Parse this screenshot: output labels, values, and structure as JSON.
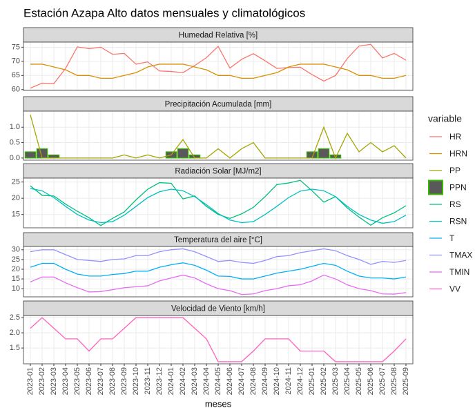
{
  "title": "Estación Azapa Alto datos mensuales y climatológicos",
  "x_label": "meses",
  "legend_title": "variable",
  "chart_data": [
    {
      "type": "line",
      "title": "Humedad Relativa [%]",
      "categories": [
        "2023-01",
        "2023-02",
        "2023-03",
        "2023-04",
        "2023-05",
        "2023-06",
        "2023-07",
        "2023-08",
        "2023-09",
        "2023-10",
        "2023-11",
        "2023-12",
        "2024-01",
        "2024-02",
        "2024-03",
        "2024-04",
        "2024-05",
        "2024-06",
        "2024-07",
        "2024-08",
        "2024-09",
        "2024-10",
        "2024-11",
        "2024-12",
        "2025-01",
        "2025-02",
        "2025-03",
        "2025-04",
        "2025-05",
        "2025-06",
        "2025-07",
        "2025-08",
        "2025-09"
      ],
      "ylim": [
        59.7,
        76.8
      ],
      "yticks": [
        60,
        65,
        70,
        75
      ],
      "grid": true,
      "series": [
        {
          "name": "HR",
          "color": "#F8766D",
          "values": [
            60.5,
            62.3,
            62.1,
            67.5,
            75.1,
            74.5,
            75,
            72.5,
            72.8,
            69,
            69.8,
            66.6,
            66.4,
            66,
            68.5,
            71.3,
            75.3,
            67.6,
            70.7,
            72.7,
            70.2,
            67.5,
            67.8,
            67.9,
            65.3,
            63,
            65,
            71,
            75.4,
            76,
            71.2,
            72.8,
            70.4
          ]
        },
        {
          "name": "HRN",
          "color": "#D89000",
          "values": [
            69,
            69,
            68,
            67,
            65,
            65,
            64,
            64,
            65,
            66,
            68,
            69,
            69,
            69,
            68,
            67,
            65,
            65,
            64,
            64,
            65,
            66,
            68,
            69,
            69,
            69,
            68,
            67,
            65,
            65,
            64,
            64,
            65
          ]
        }
      ]
    },
    {
      "type": "combo",
      "title": "Precipitación Acumulada [mm]",
      "categories": [
        "2023-01",
        "2023-02",
        "2023-03",
        "2023-04",
        "2023-05",
        "2023-06",
        "2023-07",
        "2023-08",
        "2023-09",
        "2023-10",
        "2023-11",
        "2023-12",
        "2024-01",
        "2024-02",
        "2024-03",
        "2024-04",
        "2024-05",
        "2024-06",
        "2024-07",
        "2024-08",
        "2024-09",
        "2024-10",
        "2024-11",
        "2024-12",
        "2025-01",
        "2025-02",
        "2025-03",
        "2025-04",
        "2025-05",
        "2025-06",
        "2025-07",
        "2025-08",
        "2025-09"
      ],
      "ylim": [
        -0.07,
        1.52
      ],
      "yticks": [
        {
          "value": 0,
          "label": "0.0"
        },
        {
          "value": 0.5,
          "label": "0.5"
        },
        {
          "value": 1,
          "label": "1.0"
        }
      ],
      "grid": true,
      "series": [
        {
          "name": "PP",
          "color": "#A3A500",
          "values": [
            1.4,
            0,
            0,
            0,
            0,
            0,
            0,
            0,
            0.1,
            0,
            0.1,
            0,
            0.1,
            0.6,
            0,
            0,
            0.3,
            0,
            0.3,
            0.5,
            0,
            0,
            0,
            0,
            0,
            1.0,
            0,
            0.8,
            0.2,
            0.5,
            0.2,
            0.4,
            0
          ]
        },
        {
          "name": "PPN",
          "type": "bar",
          "color": "#39B600",
          "fill": "#595959",
          "values": [
            0.2,
            0.3,
            0.1,
            0,
            0,
            0,
            0,
            0,
            0,
            0,
            0,
            0,
            0.2,
            0.3,
            0.1,
            0,
            0,
            0,
            0,
            0,
            0,
            0,
            0,
            0,
            0.2,
            0.3,
            0.1,
            0,
            0,
            0,
            0,
            0,
            0
          ]
        }
      ]
    },
    {
      "type": "line",
      "title": "Radiación Solar [MJ/m2]",
      "categories": [
        "2023-01",
        "2023-02",
        "2023-03",
        "2023-04",
        "2023-05",
        "2023-06",
        "2023-07",
        "2023-08",
        "2023-09",
        "2023-10",
        "2023-11",
        "2023-12",
        "2024-01",
        "2024-02",
        "2024-03",
        "2024-04",
        "2024-05",
        "2024-06",
        "2024-07",
        "2024-08",
        "2024-09",
        "2024-10",
        "2024-11",
        "2024-12",
        "2025-01",
        "2025-02",
        "2025-03",
        "2025-04",
        "2025-05",
        "2025-06",
        "2025-07",
        "2025-08",
        "2025-09"
      ],
      "ylim": [
        10.9,
        26.2
      ],
      "yticks": [
        15,
        20,
        25
      ],
      "grid": true,
      "series": [
        {
          "name": "RS",
          "color": "#00BF7D",
          "values": [
            23.8,
            20.9,
            20.7,
            18.2,
            16,
            14,
            11.6,
            13.8,
            15.8,
            19.5,
            22.8,
            24.8,
            24.6,
            19.8,
            20.7,
            17.5,
            15,
            13.8,
            15.2,
            17.2,
            20.5,
            24.2,
            24.7,
            25.5,
            22.3,
            18.8,
            20.5,
            17,
            14.2,
            11.7,
            14,
            15.5,
            17.7
          ]
        },
        {
          "name": "RSN",
          "color": "#00BFC4",
          "values": [
            23,
            22.3,
            20.2,
            17.5,
            15,
            13.3,
            12.5,
            12.8,
            14.8,
            17.5,
            20.2,
            22,
            22.8,
            22.3,
            20.5,
            18,
            15.3,
            13.3,
            12.5,
            12.8,
            15,
            17.5,
            20.2,
            22.2,
            22.8,
            22.3,
            20.5,
            17.5,
            15,
            13.3,
            12.3,
            12.8,
            14.8
          ]
        }
      ]
    },
    {
      "type": "line",
      "title": "Temperatura del aire [°C]",
      "categories": [
        "2023-01",
        "2023-02",
        "2023-03",
        "2023-04",
        "2023-05",
        "2023-06",
        "2023-07",
        "2023-08",
        "2023-09",
        "2023-10",
        "2023-11",
        "2023-12",
        "2024-01",
        "2024-02",
        "2024-03",
        "2024-04",
        "2024-05",
        "2024-06",
        "2024-07",
        "2024-08",
        "2024-09",
        "2024-10",
        "2024-11",
        "2024-12",
        "2025-01",
        "2025-02",
        "2025-03",
        "2025-04",
        "2025-05",
        "2025-06",
        "2025-07",
        "2025-08",
        "2025-09"
      ],
      "ylim": [
        5.8,
        31.7
      ],
      "yticks": [
        10,
        15,
        20,
        25,
        30
      ],
      "grid": true,
      "series": [
        {
          "name": "T",
          "color": "#00B0F6",
          "values": [
            21,
            23,
            23,
            20,
            17.5,
            16.5,
            16.5,
            17.3,
            17.8,
            19,
            19,
            21,
            22.3,
            23.3,
            22,
            19.5,
            16.5,
            16.3,
            15,
            15,
            16.5,
            18,
            19,
            20,
            21.5,
            23,
            22,
            19,
            16.5,
            15.5,
            15.5,
            15,
            16
          ]
        },
        {
          "name": "TMAX",
          "color": "#9590FF",
          "values": [
            29,
            30,
            30,
            27.5,
            25,
            24.5,
            24,
            25,
            25.3,
            27,
            27,
            29,
            30,
            30.5,
            29,
            26.5,
            24,
            24.5,
            23.5,
            23,
            24.5,
            26.5,
            27,
            28.5,
            29.5,
            30.5,
            29.5,
            27,
            25,
            22.5,
            24,
            23.5,
            24.5
          ]
        },
        {
          "name": "TMIN",
          "color": "#E76BF3",
          "values": [
            13.5,
            16,
            16,
            13,
            10.5,
            8.3,
            8.5,
            9.5,
            10.5,
            11,
            11.5,
            14,
            15.5,
            17,
            15.5,
            12.5,
            10,
            9,
            7,
            7.3,
            9,
            10,
            11.5,
            12,
            14,
            17,
            15,
            12,
            10,
            9,
            7.3,
            7.2,
            8
          ]
        }
      ]
    },
    {
      "type": "line",
      "title": "Velocidad de Viento [km/h]",
      "categories": [
        "2023-01",
        "2023-02",
        "2023-03",
        "2023-04",
        "2023-05",
        "2023-06",
        "2023-07",
        "2023-08",
        "2023-09",
        "2023-10",
        "2023-11",
        "2023-12",
        "2024-01",
        "2024-02",
        "2024-03",
        "2024-04",
        "2024-05",
        "2024-06",
        "2024-07",
        "2024-08",
        "2024-09",
        "2024-10",
        "2024-11",
        "2024-12",
        "2025-01",
        "2025-02",
        "2025-03",
        "2025-04",
        "2025-05",
        "2025-06",
        "2025-07",
        "2025-08",
        "2025-09"
      ],
      "ylim": [
        0.98,
        2.57
      ],
      "yticks": [
        1.5,
        {
          "value": 2,
          "label": "2.0"
        },
        2.5
      ],
      "grid": true,
      "series": [
        {
          "name": "VV",
          "color": "#FF62BC",
          "values": [
            2.15,
            2.5,
            2.15,
            1.8,
            1.8,
            1.4,
            1.8,
            1.8,
            2.15,
            2.5,
            2.5,
            2.5,
            2.5,
            2.5,
            2.15,
            1.8,
            1.05,
            1.05,
            1.05,
            1.4,
            1.8,
            1.8,
            1.8,
            1.4,
            1.4,
            1.4,
            1.05,
            1.05,
            1.05,
            1.05,
            1.05,
            1.4,
            1.8
          ]
        }
      ]
    }
  ]
}
